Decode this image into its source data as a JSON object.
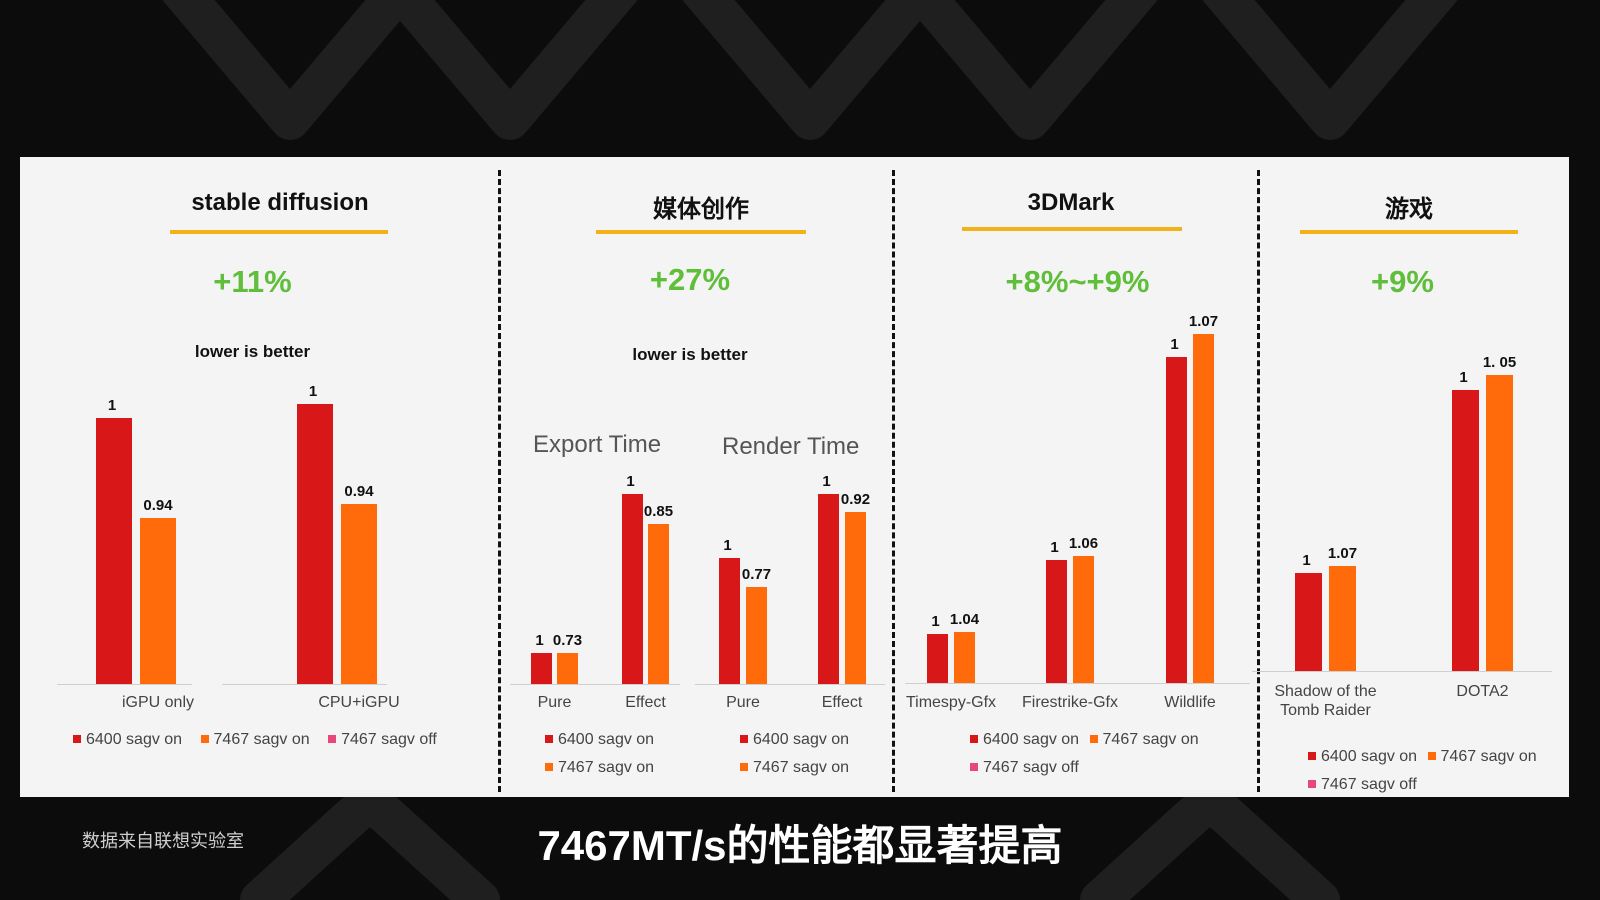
{
  "colors": {
    "s6400_on": "#d81818",
    "s7467_on": "#ff6a0a",
    "s7467_off": "#e8477a",
    "accent_underline": "#f4b21a",
    "percent_green": "#5fbe3a"
  },
  "legend_labels": {
    "s6400_on": "6400 sagv on",
    "s7467_on": "7467 sagv on",
    "s7467_off": "7467 sagv off"
  },
  "sections": {
    "sd": {
      "title": "stable  diffusion",
      "percent": "+11%",
      "note": "lower is better"
    },
    "media": {
      "title": "媒体创作",
      "percent": "+27%",
      "note": "lower is better",
      "sub_export": "Export Time",
      "sub_render": "Render Time"
    },
    "mark": {
      "title": "3DMark",
      "percent": "+8%~+9%"
    },
    "game": {
      "title": "游戏",
      "percent": "+9%"
    }
  },
  "chart_data": [
    {
      "type": "bar",
      "title": "stable  diffusion",
      "categories": [
        "iGPU only",
        "CPU+iGPU"
      ],
      "series": [
        {
          "name": "6400 sagv on",
          "values": [
            1,
            1
          ],
          "labels": [
            "1",
            "1"
          ]
        },
        {
          "name": "7467 sagv on",
          "values": [
            0.94,
            0.94
          ],
          "labels": [
            "0.94",
            "0.94"
          ]
        }
      ]
    },
    {
      "type": "bar",
      "title": "Export Time",
      "categories": [
        "Pure",
        "Effect"
      ],
      "series": [
        {
          "name": "6400 sagv on",
          "values": [
            1,
            1
          ],
          "labels": [
            "1",
            "1"
          ]
        },
        {
          "name": "7467 sagv on",
          "values": [
            0.73,
            0.85
          ],
          "labels": [
            "0.73",
            "0.85"
          ]
        }
      ]
    },
    {
      "type": "bar",
      "title": "Render Time",
      "categories": [
        "Pure",
        "Effect"
      ],
      "series": [
        {
          "name": "6400 sagv on",
          "values": [
            1,
            1
          ],
          "labels": [
            "1",
            "1"
          ]
        },
        {
          "name": "7467 sagv on",
          "values": [
            0.77,
            0.92
          ],
          "labels": [
            "0.77",
            "0.92"
          ]
        }
      ]
    },
    {
      "type": "bar",
      "title": "3DMark",
      "categories": [
        "Timespy-Gfx",
        "Firestrike-Gfx",
        "Wildlife"
      ],
      "series": [
        {
          "name": "6400 sagv on",
          "values": [
            1,
            1,
            1
          ],
          "labels": [
            "1",
            "1",
            "1"
          ]
        },
        {
          "name": "7467 sagv on",
          "values": [
            1.04,
            1.06,
            1.07
          ],
          "labels": [
            "1.04",
            "1.06",
            "1.07"
          ]
        }
      ]
    },
    {
      "type": "bar",
      "title": "游戏",
      "categories": [
        "Shadow of the Tomb Raider",
        "DOTA2"
      ],
      "series": [
        {
          "name": "6400 sagv on",
          "values": [
            1,
            1
          ],
          "labels": [
            "1",
            "1"
          ]
        },
        {
          "name": "7467 sagv on",
          "values": [
            1.07,
            1.05
          ],
          "labels": [
            "1.07",
            "1. 05"
          ]
        }
      ]
    }
  ],
  "footer": {
    "credit": "数据来自联想实验室",
    "subtitle": "7467MT/s的性能都显著提高"
  }
}
